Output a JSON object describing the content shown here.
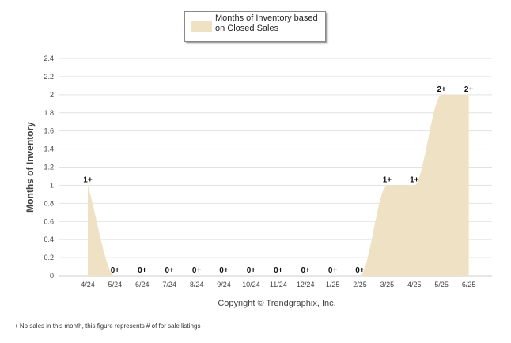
{
  "chart_data": {
    "type": "area",
    "legend": "Months of Inventory based on Closed Sales",
    "legend_position": "top-center",
    "ylabel": "Months of Inventory",
    "xlabel": "",
    "categories": [
      "4/24",
      "5/24",
      "6/24",
      "7/24",
      "8/24",
      "9/24",
      "10/24",
      "11/24",
      "12/24",
      "1/25",
      "2/25",
      "3/25",
      "4/25",
      "5/25",
      "6/25"
    ],
    "values": [
      1.0,
      0,
      0,
      0,
      0,
      0,
      0,
      0,
      0,
      0,
      0,
      1.0,
      1.0,
      2.0,
      2.0
    ],
    "data_labels": [
      "1+",
      "0+",
      "0+",
      "0+",
      "0+",
      "0+",
      "0+",
      "0+",
      "0+",
      "0+",
      "0+",
      "1+",
      "1+",
      "2+",
      "2+"
    ],
    "yticks": [
      "0",
      "0.2",
      "0.4",
      "0.6",
      "0.8",
      "1",
      "1.2",
      "1.4",
      "1.6",
      "1.8",
      "2",
      "2.2",
      "2.4"
    ],
    "ylim": [
      0,
      2.4
    ],
    "grid": true,
    "colors": {
      "fill": "#efe1c4",
      "grid": "#e2e2e2",
      "axis": "#cccccc"
    },
    "caption": "Copyright © Trendgraphix, Inc.",
    "footnote": "+ No sales in this month, this figure represents # of for sale listings"
  }
}
